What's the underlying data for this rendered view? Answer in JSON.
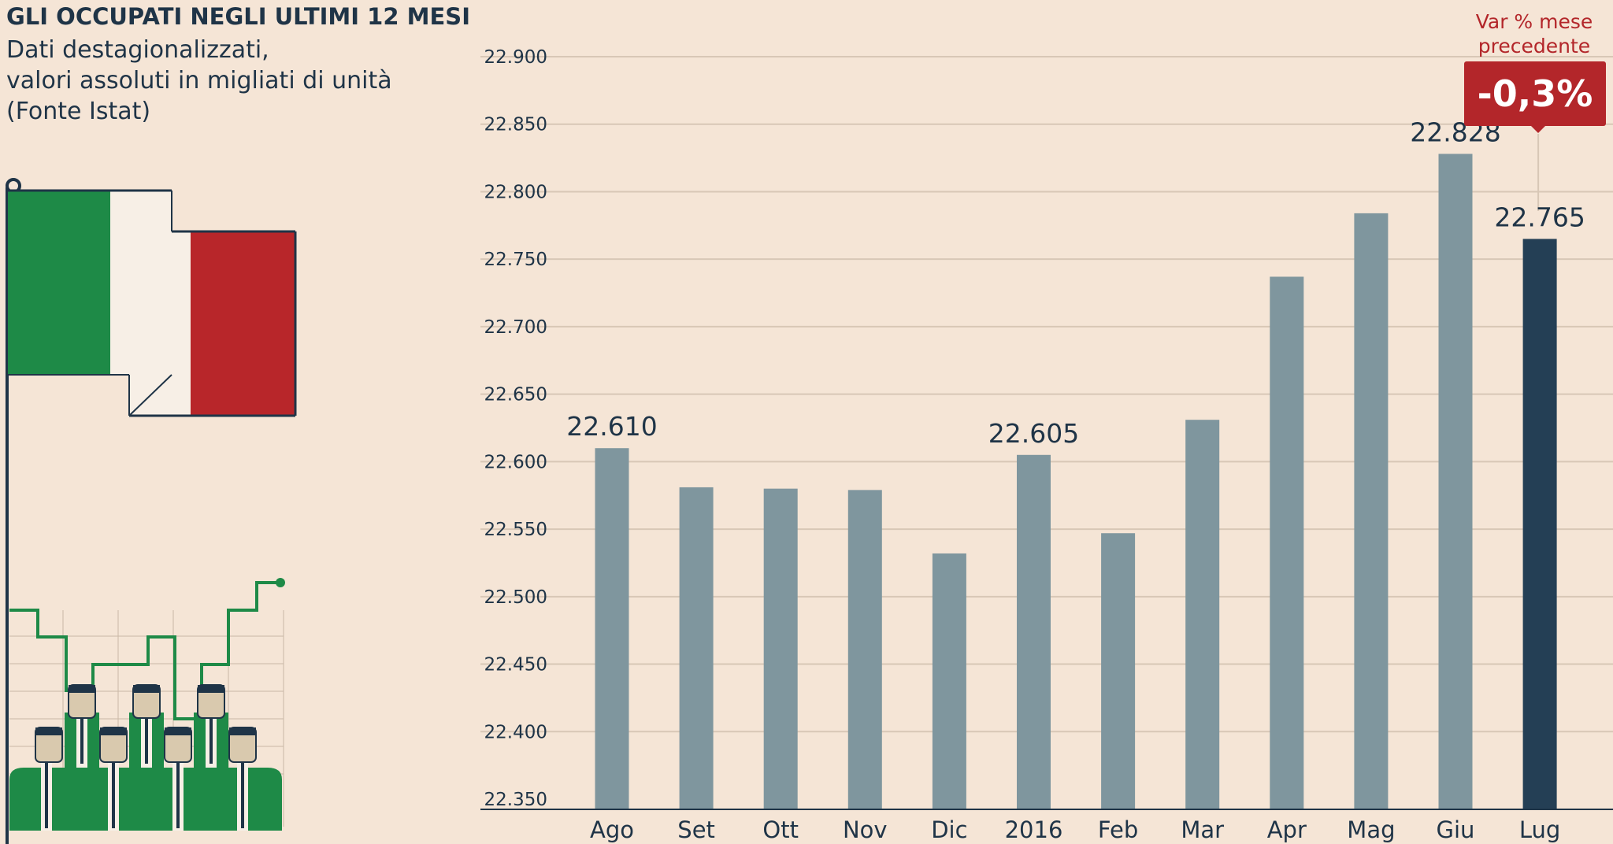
{
  "header": {
    "title": "GLI OCCUPATI NEGLI ULTIMI 12 MESI",
    "subtitle_lines": [
      "Dati destagionalizzati,",
      "valori assoluti in migliati di unità",
      "(Fonte Istat)"
    ]
  },
  "variation": {
    "label_lines": [
      "Var % mese",
      "precedente"
    ],
    "value": "-0,3%"
  },
  "colors": {
    "background": "#f5e5d6",
    "bar": "#7f969e",
    "bar_highlight": "#243f55",
    "accent_red": "#b3262a",
    "flag_green": "#1e8a47",
    "flag_white": "#f7efe6",
    "flag_red": "#b8262a",
    "text": "#1f3447",
    "grid": "#d8c7b6"
  },
  "icons": [
    "italian-flag-icon",
    "workers-icon",
    "growth-line-icon"
  ],
  "chart_data": {
    "type": "bar",
    "categories": [
      "Ago",
      "Set",
      "Ott",
      "Nov",
      "Dic",
      "2016",
      "Feb",
      "Mar",
      "Apr",
      "Mag",
      "Giu",
      "Lug"
    ],
    "values": [
      22610,
      22581,
      22580,
      22579,
      22532,
      22605,
      22547,
      22631,
      22737,
      22784,
      22828,
      22765
    ],
    "data_labels": [
      {
        "index": 0,
        "text": "22.610"
      },
      {
        "index": 5,
        "text": "22.605"
      },
      {
        "index": 10,
        "text": "22.828"
      },
      {
        "index": 11,
        "text": "22.765"
      }
    ],
    "highlight_index": 11,
    "ylim": [
      22350,
      22900
    ],
    "y_ticks": [
      22350,
      22400,
      22450,
      22500,
      22550,
      22600,
      22650,
      22700,
      22750,
      22800,
      22850,
      22900
    ],
    "y_tick_labels": [
      "22.350",
      "22.400",
      "22.450",
      "22.500",
      "22.550",
      "22.600",
      "22.650",
      "22.700",
      "22.750",
      "22.800",
      "22.850",
      "22.900"
    ],
    "title": "",
    "xlabel": "",
    "ylabel": "",
    "grid": true,
    "legend": "none"
  }
}
